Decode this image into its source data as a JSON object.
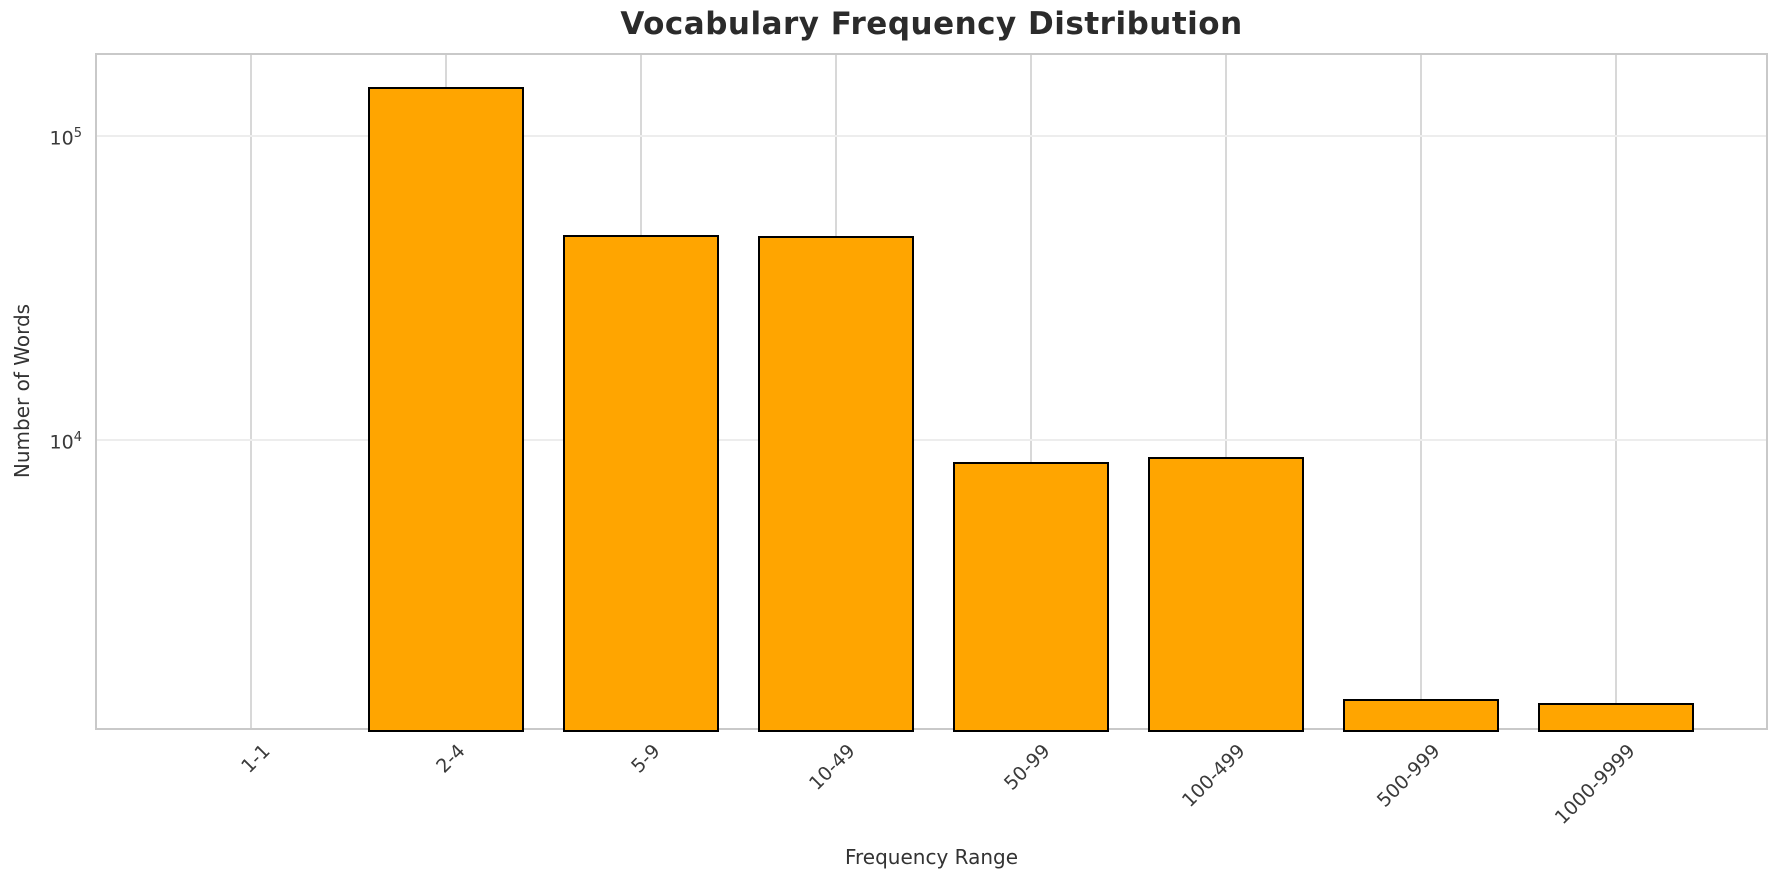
{
  "chart_data": {
    "type": "bar",
    "title": "Vocabulary Frequency Distribution",
    "xlabel": "Frequency Range",
    "ylabel": "Number of Words",
    "categories": [
      "1-1",
      "2-4",
      "5-9",
      "10-49",
      "50-99",
      "100-499",
      "500-999",
      "1000-9999"
    ],
    "values": [
      0,
      145000,
      47500,
      47000,
      8500,
      8800,
      1410,
      1370
    ],
    "yscale": "log",
    "ylim": [
      1100,
      185000
    ],
    "xlim": [
      -0.79,
      7.79
    ],
    "yticks": [
      {
        "value": 10000,
        "base": "10",
        "exp": "4"
      },
      {
        "value": 100000,
        "base": "10",
        "exp": "5"
      }
    ],
    "bar_width": 0.8,
    "x_tick_rotation_deg": 45,
    "grid": true,
    "legend": false,
    "colors": {
      "bar_fill": "#FFA500",
      "bar_edge": "#000000",
      "grid_vertical": "#d8d8d8",
      "grid_horizontal": "#ededed",
      "spine": "#c9c9c9",
      "title_text": "#2b2b2b",
      "tick_text": "#3a3a3a",
      "label_text": "#333333",
      "background": "#ffffff"
    }
  }
}
